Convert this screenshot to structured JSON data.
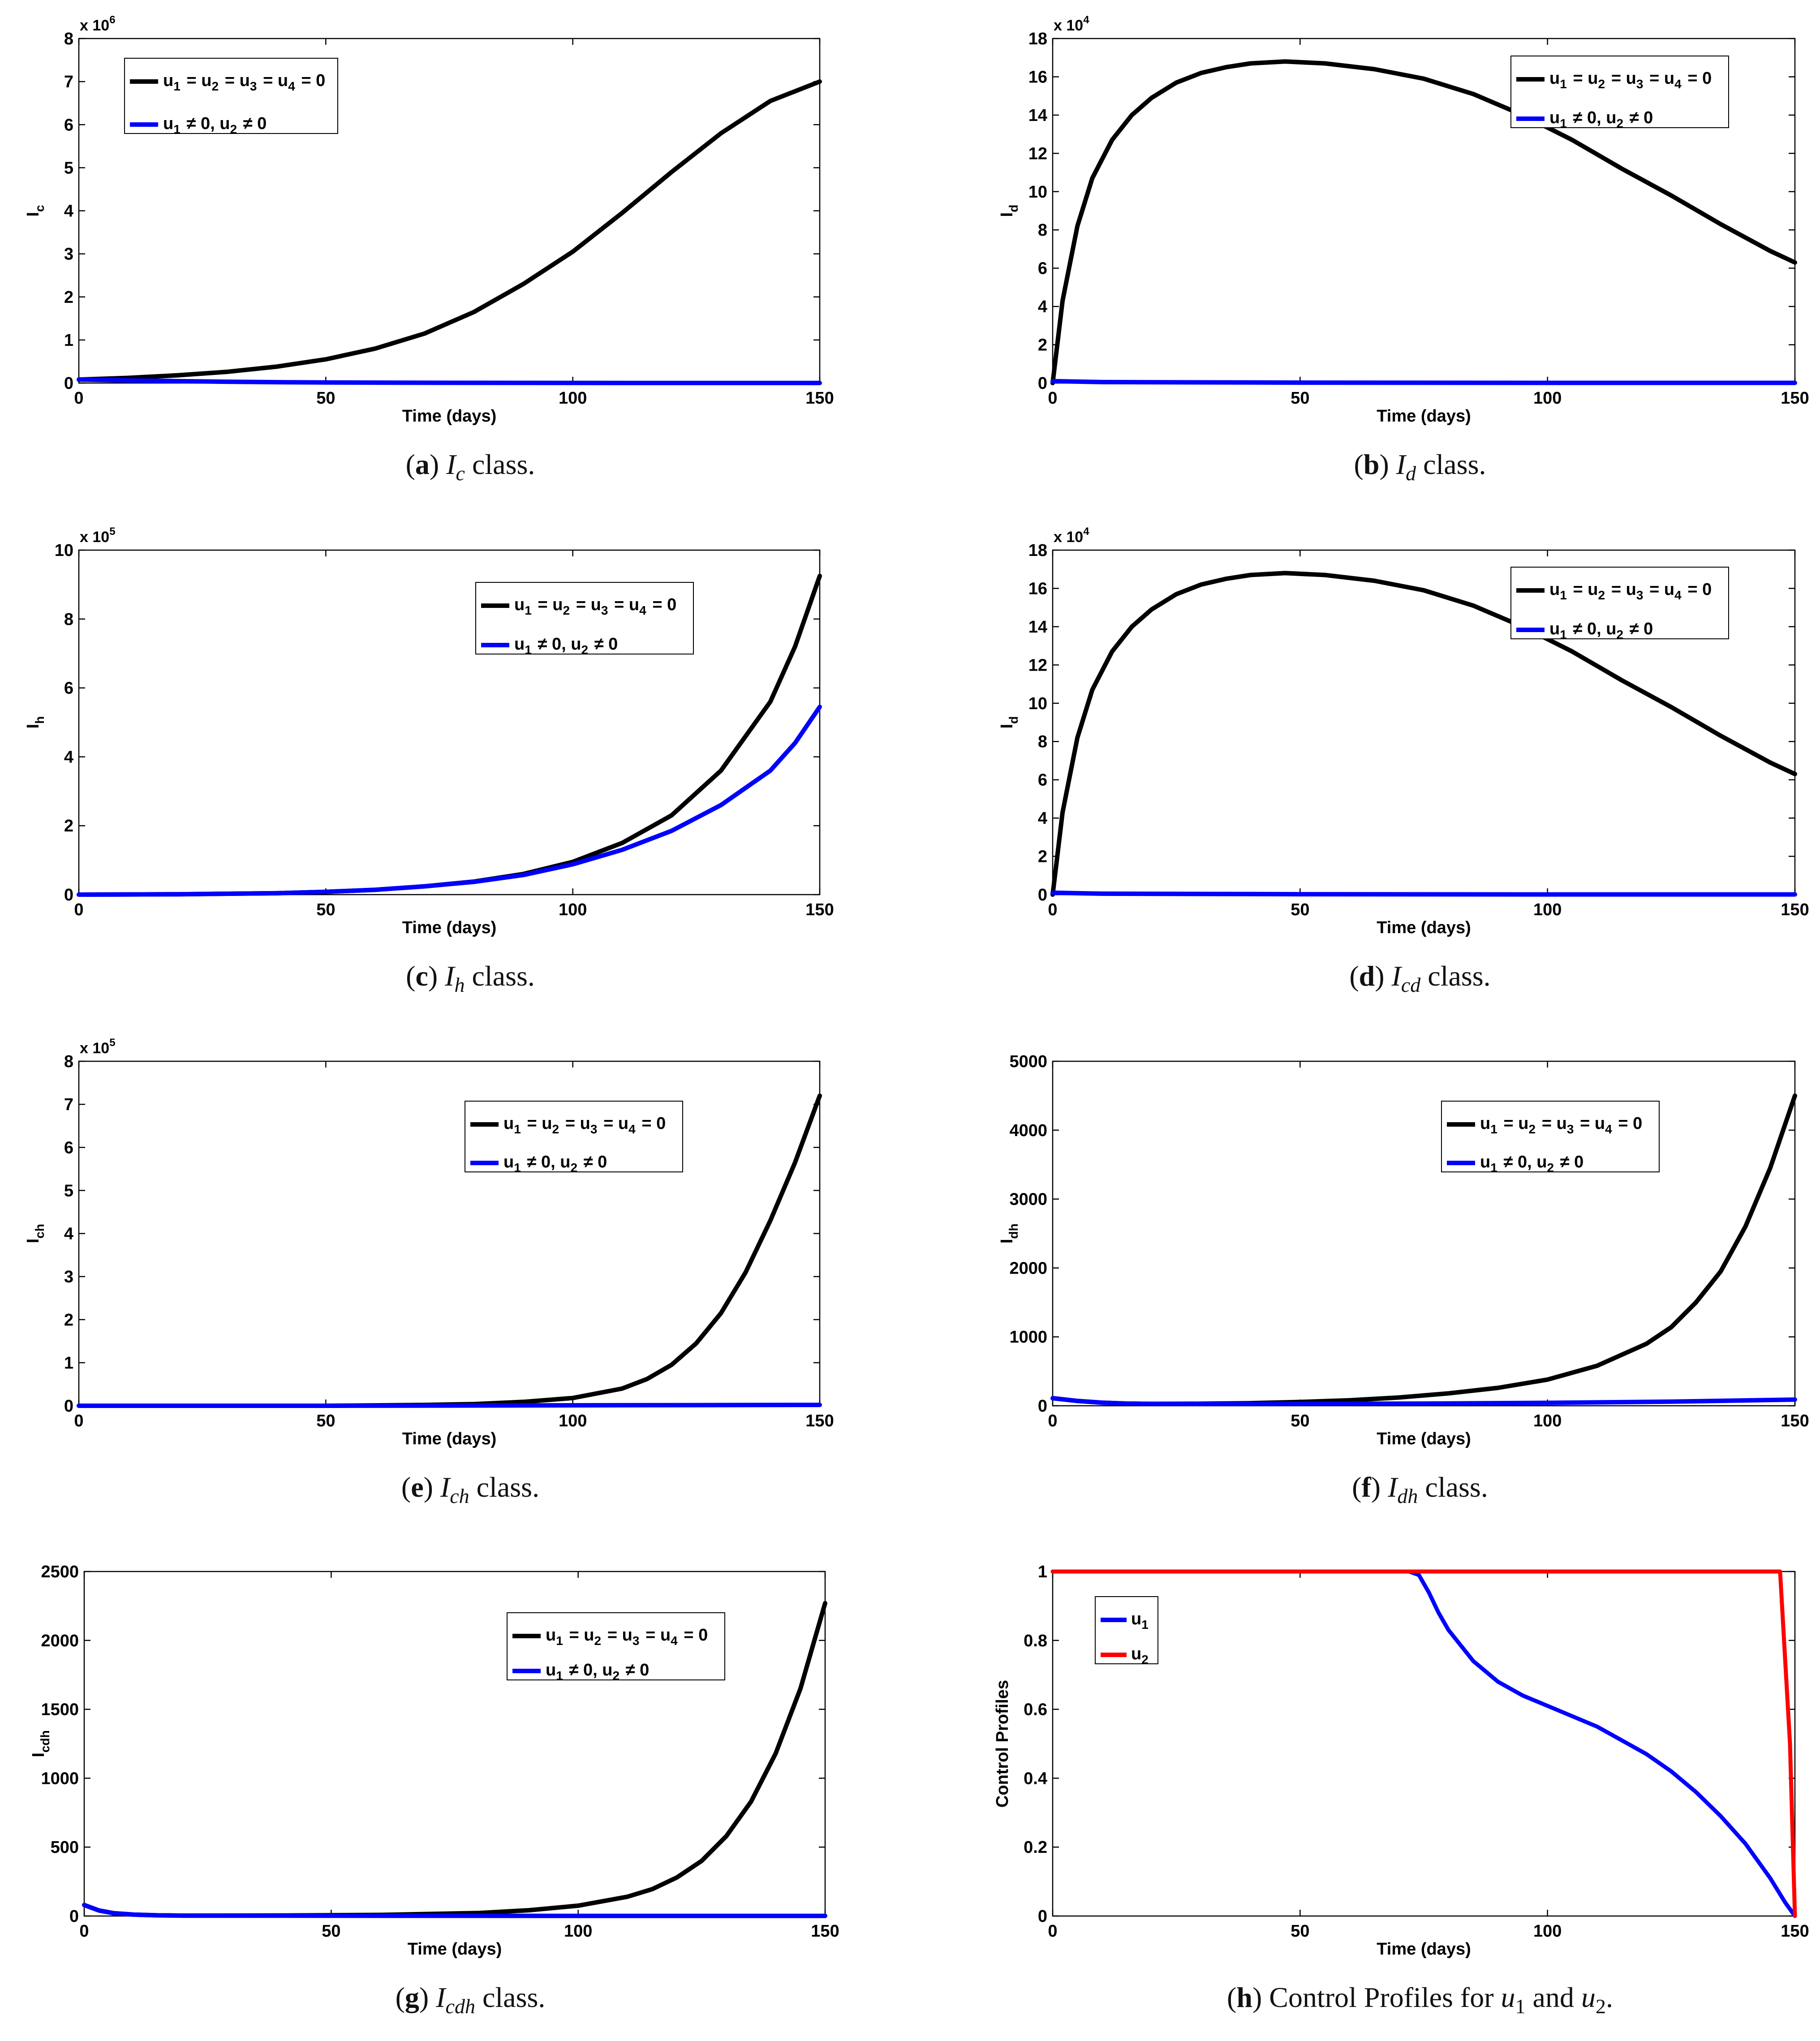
{
  "chart_data": [
    {
      "id": "a",
      "type": "line",
      "caption": {
        "letter": "a",
        "symbol": "I",
        "subscript": "c",
        "suffix": " class."
      },
      "ylabel": {
        "base": "I",
        "sub": "c"
      },
      "xlabel": "Time (days)",
      "exponent": {
        "base": "x 10",
        "power": "6"
      },
      "xlim": [
        0,
        150
      ],
      "ylim": [
        0,
        8
      ],
      "xticks": [
        0,
        50,
        100,
        150
      ],
      "yticks": [
        0,
        1,
        2,
        3,
        4,
        5,
        6,
        7,
        8
      ],
      "legend": {
        "position": "top-left",
        "entries": [
          "u1 = u2 = u3 = u4 = 0",
          "u1 ≠ 0, u2 ≠ 0"
        ]
      },
      "series": [
        {
          "name": "u1 = u2 = u3 = u4 = 0",
          "color": "#000000",
          "x": [
            0,
            10,
            20,
            30,
            40,
            50,
            60,
            70,
            80,
            90,
            100,
            110,
            120,
            130,
            140,
            150
          ],
          "y": [
            0.08,
            0.12,
            0.18,
            0.26,
            0.38,
            0.55,
            0.8,
            1.15,
            1.65,
            2.3,
            3.05,
            3.95,
            4.9,
            5.8,
            6.55,
            7.0
          ]
        },
        {
          "name": "u1 ≠ 0, u2 ≠ 0",
          "color": "#0000ff",
          "x": [
            0,
            10,
            20,
            30,
            40,
            50,
            75,
            100,
            150
          ],
          "y": [
            0.08,
            0.06,
            0.045,
            0.03,
            0.02,
            0.012,
            0.005,
            0.002,
            0.001
          ]
        }
      ]
    },
    {
      "id": "b",
      "type": "line",
      "caption": {
        "letter": "b",
        "symbol": "I",
        "subscript": "d",
        "suffix": " class."
      },
      "ylabel": {
        "base": "I",
        "sub": "d"
      },
      "xlabel": "Time (days)",
      "exponent": {
        "base": "x 10",
        "power": "4"
      },
      "xlim": [
        0,
        150
      ],
      "ylim": [
        0,
        18
      ],
      "xticks": [
        0,
        50,
        100,
        150
      ],
      "yticks": [
        0,
        2,
        4,
        6,
        8,
        10,
        12,
        14,
        16,
        18
      ],
      "legend": {
        "position": "top-right",
        "entries": [
          "u1 = u2 = u3 = u4 = 0",
          "u1 ≠ 0, u2 ≠ 0"
        ]
      },
      "series": [
        {
          "name": "u1 = u2 = u3 = u4 = 0",
          "color": "#000000",
          "x": [
            0,
            2,
            5,
            8,
            12,
            16,
            20,
            25,
            30,
            35,
            40,
            47,
            55,
            65,
            75,
            85,
            95,
            105,
            115,
            125,
            135,
            145,
            150
          ],
          "y": [
            0,
            4.3,
            8.2,
            10.7,
            12.7,
            14.0,
            14.9,
            15.7,
            16.2,
            16.5,
            16.7,
            16.8,
            16.7,
            16.4,
            15.9,
            15.1,
            14.0,
            12.7,
            11.2,
            9.8,
            8.3,
            6.9,
            6.3
          ]
        },
        {
          "name": "u1 ≠ 0, u2 ≠ 0",
          "color": "#0000ff",
          "x": [
            0,
            10,
            50,
            100,
            150
          ],
          "y": [
            0.1,
            0.05,
            0.02,
            0.01,
            0.01
          ]
        }
      ]
    },
    {
      "id": "c",
      "type": "line",
      "caption": {
        "letter": "c",
        "symbol": "I",
        "subscript": "h",
        "suffix": " class."
      },
      "ylabel": {
        "base": "I",
        "sub": "h"
      },
      "xlabel": "Time (days)",
      "exponent": {
        "base": "x 10",
        "power": "5"
      },
      "xlim": [
        0,
        150
      ],
      "ylim": [
        0,
        10
      ],
      "xticks": [
        0,
        50,
        100,
        150
      ],
      "yticks": [
        0,
        2,
        4,
        6,
        8,
        10
      ],
      "legend": {
        "position": "top-right",
        "entries": [
          "u1 = u2 = u3 = u4 = 0",
          "u1 ≠ 0, u2 ≠ 0"
        ]
      },
      "series": [
        {
          "name": "u1 = u2 = u3 = u4 = 0",
          "color": "#000000",
          "x": [
            0,
            20,
            40,
            50,
            60,
            70,
            80,
            90,
            100,
            110,
            120,
            130,
            140,
            145,
            150
          ],
          "y": [
            0.0,
            0.01,
            0.04,
            0.08,
            0.14,
            0.24,
            0.38,
            0.6,
            0.95,
            1.5,
            2.3,
            3.6,
            5.6,
            7.2,
            9.25
          ]
        },
        {
          "name": "u1 ≠ 0, u2 ≠ 0",
          "color": "#0000ff",
          "x": [
            0,
            20,
            40,
            50,
            60,
            70,
            80,
            90,
            100,
            110,
            120,
            130,
            140,
            145,
            150
          ],
          "y": [
            0.0,
            0.01,
            0.04,
            0.08,
            0.14,
            0.24,
            0.37,
            0.57,
            0.88,
            1.3,
            1.85,
            2.6,
            3.6,
            4.4,
            5.45
          ]
        }
      ]
    },
    {
      "id": "d",
      "type": "line",
      "caption": {
        "letter": "d",
        "symbol": "I",
        "subscript": "cd",
        "suffix": " class."
      },
      "ylabel": {
        "base": "I",
        "sub": "d"
      },
      "xlabel": "Time (days)",
      "exponent": {
        "base": "x 10",
        "power": "4"
      },
      "xlim": [
        0,
        150
      ],
      "ylim": [
        0,
        18
      ],
      "xticks": [
        0,
        50,
        100,
        150
      ],
      "yticks": [
        0,
        2,
        4,
        6,
        8,
        10,
        12,
        14,
        16,
        18
      ],
      "legend": {
        "position": "top-right",
        "entries": [
          "u1 = u2 = u3 = u4 = 0",
          "u1 ≠ 0, u2 ≠ 0"
        ]
      },
      "series": [
        {
          "name": "u1 = u2 = u3 = u4 = 0",
          "color": "#000000",
          "x": [
            0,
            2,
            5,
            8,
            12,
            16,
            20,
            25,
            30,
            35,
            40,
            47,
            55,
            65,
            75,
            85,
            95,
            105,
            115,
            125,
            135,
            145,
            150
          ],
          "y": [
            0,
            4.3,
            8.2,
            10.7,
            12.7,
            14.0,
            14.9,
            15.7,
            16.2,
            16.5,
            16.7,
            16.8,
            16.7,
            16.4,
            15.9,
            15.1,
            14.0,
            12.7,
            11.2,
            9.8,
            8.3,
            6.9,
            6.3
          ]
        },
        {
          "name": "u1 ≠ 0, u2 ≠ 0",
          "color": "#0000ff",
          "x": [
            0,
            10,
            50,
            100,
            150
          ],
          "y": [
            0.1,
            0.05,
            0.02,
            0.01,
            0.01
          ]
        }
      ]
    },
    {
      "id": "e",
      "type": "line",
      "caption": {
        "letter": "e",
        "symbol": "I",
        "subscript": "ch",
        "suffix": " class."
      },
      "ylabel": {
        "base": "I",
        "sub": "ch"
      },
      "xlabel": "Time (days)",
      "exponent": {
        "base": "x 10",
        "power": "5"
      },
      "xlim": [
        0,
        150
      ],
      "ylim": [
        0,
        8
      ],
      "xticks": [
        0,
        50,
        100,
        150
      ],
      "yticks": [
        0,
        1,
        2,
        3,
        4,
        5,
        6,
        7,
        8
      ],
      "legend": {
        "position": "top-right",
        "entries": [
          "u1 = u2 = u3 = u4 = 0",
          "u1 ≠ 0, u2 ≠ 0"
        ]
      },
      "series": [
        {
          "name": "u1 = u2 = u3 = u4 = 0",
          "color": "#000000",
          "x": [
            0,
            50,
            70,
            80,
            90,
            100,
            110,
            115,
            120,
            125,
            130,
            135,
            140,
            145,
            150
          ],
          "y": [
            0.0,
            0.0,
            0.02,
            0.04,
            0.09,
            0.18,
            0.4,
            0.62,
            0.95,
            1.45,
            2.15,
            3.1,
            4.3,
            5.65,
            7.2
          ]
        },
        {
          "name": "u1 ≠ 0, u2 ≠ 0",
          "color": "#0000ff",
          "x": [
            0,
            50,
            100,
            150
          ],
          "y": [
            0.0,
            0.0,
            0.01,
            0.02
          ]
        }
      ]
    },
    {
      "id": "f",
      "type": "line",
      "caption": {
        "letter": "f",
        "symbol": "I",
        "subscript": "dh",
        "suffix": " class."
      },
      "ylabel": {
        "base": "I",
        "sub": "dh"
      },
      "xlabel": "Time (days)",
      "exponent": null,
      "xlim": [
        0,
        150
      ],
      "ylim": [
        0,
        5000
      ],
      "xticks": [
        0,
        50,
        100,
        150
      ],
      "yticks": [
        0,
        1000,
        2000,
        3000,
        4000,
        5000
      ],
      "legend": {
        "position": "top-right",
        "entries": [
          "u1 = u2 = u3 = u4 = 0",
          "u1 ≠ 0, u2 ≠ 0"
        ]
      },
      "series": [
        {
          "name": "u1 = u2 = u3 = u4 = 0",
          "color": "#000000",
          "x": [
            0,
            5,
            10,
            15,
            20,
            30,
            40,
            50,
            60,
            70,
            80,
            90,
            100,
            110,
            120,
            125,
            130,
            135,
            140,
            145,
            150
          ],
          "y": [
            110,
            70,
            45,
            32,
            28,
            30,
            38,
            55,
            80,
            120,
            180,
            260,
            380,
            580,
            900,
            1140,
            1500,
            1950,
            2600,
            3450,
            4500
          ]
        },
        {
          "name": "u1 ≠ 0, u2 ≠ 0",
          "color": "#0000ff",
          "x": [
            0,
            5,
            10,
            15,
            20,
            30,
            50,
            75,
            100,
            125,
            150
          ],
          "y": [
            110,
            70,
            45,
            32,
            28,
            26,
            28,
            32,
            42,
            60,
            90
          ]
        }
      ]
    },
    {
      "id": "g",
      "type": "line",
      "caption": {
        "letter": "g",
        "symbol": "I",
        "subscript": "cdh",
        "suffix": " class."
      },
      "ylabel": {
        "base": "I",
        "sub": "cdh"
      },
      "xlabel": "Time (days)",
      "exponent": null,
      "xlim": [
        0,
        150
      ],
      "ylim": [
        0,
        2500
      ],
      "xticks": [
        0,
        50,
        100,
        150
      ],
      "yticks": [
        0,
        500,
        1000,
        1500,
        2000,
        2500
      ],
      "legend": {
        "position": "top-right",
        "entries": [
          "u1 = u2 = u3 = u4 = 0",
          "u1 ≠ 0, u2 ≠ 0"
        ]
      },
      "series": [
        {
          "name": "u1 = u2 = u3 = u4 = 0",
          "color": "#000000",
          "x": [
            0,
            3,
            6,
            10,
            15,
            20,
            40,
            60,
            80,
            90,
            100,
            110,
            115,
            120,
            125,
            130,
            135,
            140,
            145,
            150
          ],
          "y": [
            80,
            40,
            20,
            10,
            5,
            3,
            4,
            8,
            22,
            42,
            75,
            140,
            195,
            280,
            400,
            580,
            830,
            1180,
            1650,
            2270
          ]
        },
        {
          "name": "u1 ≠ 0, u2 ≠ 0",
          "color": "#0000ff",
          "x": [
            0,
            3,
            6,
            10,
            15,
            20,
            50,
            100,
            150
          ],
          "y": [
            80,
            40,
            20,
            10,
            5,
            3,
            2,
            1,
            1
          ]
        }
      ]
    },
    {
      "id": "h",
      "type": "line",
      "caption": {
        "letter": "h",
        "prefix": " Control Profiles for ",
        "u1": "u",
        "u1sub": "1",
        "mid": " and ",
        "u2": "u",
        "u2sub": "2",
        "suffix": "."
      },
      "ylabel": {
        "base": "Control Profiles",
        "sub": ""
      },
      "xlabel": "Time (days)",
      "exponent": null,
      "xlim": [
        0,
        150
      ],
      "ylim": [
        0,
        1
      ],
      "xticks": [
        0,
        50,
        100,
        150
      ],
      "yticks": [
        0,
        0.2,
        0.4,
        0.6,
        0.8,
        1
      ],
      "legend": {
        "position": "top-left",
        "entries": [
          "u1",
          "u2"
        ]
      },
      "series": [
        {
          "name": "u1",
          "color": "#0000ff",
          "x": [
            0,
            72,
            74,
            76,
            78,
            80,
            85,
            90,
            95,
            100,
            105,
            110,
            115,
            120,
            125,
            130,
            135,
            140,
            145,
            148,
            150
          ],
          "y": [
            1,
            1,
            0.99,
            0.94,
            0.88,
            0.83,
            0.74,
            0.68,
            0.64,
            0.61,
            0.58,
            0.55,
            0.51,
            0.47,
            0.42,
            0.36,
            0.29,
            0.21,
            0.11,
            0.04,
            0.0
          ]
        },
        {
          "name": "u2",
          "color": "#ff0000",
          "x": [
            0,
            147,
            149,
            150
          ],
          "y": [
            1,
            1,
            0.5,
            0.0
          ]
        }
      ]
    }
  ]
}
